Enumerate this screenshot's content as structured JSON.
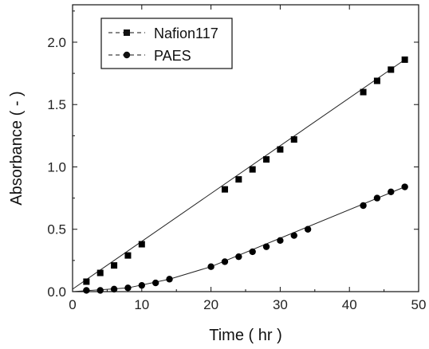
{
  "chart_data": {
    "type": "line",
    "xlabel": "Time ( hr )",
    "ylabel": "Absorbance ( - )",
    "xlim": [
      0,
      50
    ],
    "ylim": [
      0,
      2.3
    ],
    "xticks": [
      "0",
      "10",
      "20",
      "30",
      "40",
      "50"
    ],
    "yticks": [
      "0.0",
      "0.5",
      "1.0",
      "1.5",
      "2.0"
    ],
    "xtick_values": [
      0,
      10,
      20,
      30,
      40,
      50
    ],
    "ytick_values": [
      0,
      0.5,
      1.0,
      1.5,
      2.0
    ],
    "grid": false,
    "legend_position": "top-left",
    "series": [
      {
        "name": "Nafion117",
        "marker": "square",
        "color": "#000000",
        "x": [
          2,
          4,
          6,
          8,
          10,
          22,
          24,
          26,
          28,
          30,
          32,
          42,
          44,
          46,
          48
        ],
        "y": [
          0.08,
          0.15,
          0.21,
          0.29,
          0.38,
          0.82,
          0.9,
          0.98,
          1.06,
          1.14,
          1.22,
          1.6,
          1.69,
          1.78,
          1.86
        ]
      },
      {
        "name": "PAES",
        "marker": "circle",
        "color": "#000000",
        "x": [
          2,
          4,
          6,
          8,
          10,
          12,
          14,
          20,
          22,
          24,
          26,
          28,
          30,
          32,
          34,
          42,
          44,
          46,
          48
        ],
        "y": [
          0.01,
          0.01,
          0.02,
          0.03,
          0.05,
          0.07,
          0.1,
          0.2,
          0.24,
          0.28,
          0.32,
          0.36,
          0.41,
          0.45,
          0.5,
          0.69,
          0.75,
          0.8,
          0.84
        ]
      }
    ],
    "fit_lines": [
      {
        "series": "Nafion117",
        "x": [
          0,
          48
        ],
        "y": [
          0.02,
          1.86
        ]
      },
      {
        "series": "PAES",
        "x": [
          0,
          8,
          14,
          20,
          48
        ],
        "y": [
          0.0,
          0.03,
          0.1,
          0.2,
          0.84
        ]
      }
    ]
  }
}
